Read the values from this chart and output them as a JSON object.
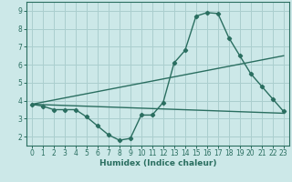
{
  "xlabel": "Humidex (Indice chaleur)",
  "ylabel": "",
  "bg_color": "#cce8e8",
  "line_color": "#2a6e60",
  "grid_color": "#aacece",
  "xlim": [
    -0.5,
    23.5
  ],
  "ylim": [
    1.5,
    9.5
  ],
  "xticks": [
    0,
    1,
    2,
    3,
    4,
    5,
    6,
    7,
    8,
    9,
    10,
    11,
    12,
    13,
    14,
    15,
    16,
    17,
    18,
    19,
    20,
    21,
    22,
    23
  ],
  "yticks": [
    2,
    3,
    4,
    5,
    6,
    7,
    8,
    9
  ],
  "line1_x": [
    0,
    1,
    2,
    3,
    4,
    5,
    6,
    7,
    8,
    9,
    10,
    11,
    12,
    13,
    14,
    15,
    16,
    17,
    18,
    19,
    20,
    21,
    22,
    23
  ],
  "line1_y": [
    3.8,
    3.7,
    3.5,
    3.5,
    3.5,
    3.1,
    2.6,
    2.1,
    1.8,
    1.9,
    3.2,
    3.2,
    3.9,
    6.1,
    6.8,
    8.7,
    8.9,
    8.85,
    7.5,
    6.5,
    5.5,
    4.8,
    4.1,
    3.4
  ],
  "line2_x": [
    0,
    23
  ],
  "line2_y": [
    3.8,
    3.3
  ],
  "line3_x": [
    0,
    23
  ],
  "line3_y": [
    3.8,
    6.5
  ]
}
